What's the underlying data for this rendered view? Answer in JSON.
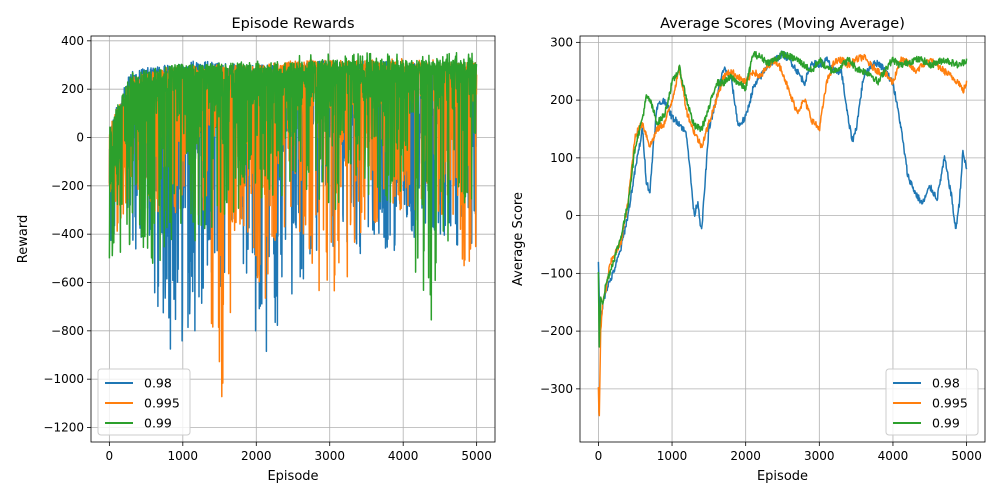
{
  "chart_data": [
    {
      "type": "line",
      "title": "Episode Rewards",
      "xlabel": "Episode",
      "ylabel": "Reward",
      "xlim": [
        -250,
        5250
      ],
      "ylim": [
        -1260,
        420
      ],
      "xticks": [
        0,
        1000,
        2000,
        3000,
        4000,
        5000
      ],
      "yticks": [
        -1200,
        -1000,
        -800,
        -600,
        -400,
        -200,
        0,
        200,
        400
      ],
      "grid": true,
      "legend": "lower-left",
      "series": [
        {
          "name": "0.98",
          "color": "#1f77b4",
          "values_note": "noisy per-episode rewards",
          "envelope": {
            "x": [
              0,
              300,
              800,
              1200,
              1800,
              2100,
              2500,
              3000,
              3500,
              4000,
              4500,
              5000
            ],
            "lo": [
              -500,
              -420,
              -900,
              -800,
              -520,
              -970,
              -640,
              -480,
              -500,
              -460,
              -400,
              -500
            ],
            "hi": [
              50,
              280,
              300,
              320,
              300,
              300,
              310,
              320,
              320,
              310,
              310,
              310
            ],
            "mid": [
              -150,
              50,
              60,
              0,
              150,
              200,
              200,
              150,
              120,
              80,
              60,
              60
            ]
          }
        },
        {
          "name": "0.995",
          "color": "#ff7f0e",
          "envelope": {
            "x": [
              0,
              300,
              800,
              1200,
              1500,
              1800,
              2100,
              2500,
              3000,
              3500,
              4000,
              4500,
              5000
            ],
            "lo": [
              -420,
              -380,
              -350,
              -300,
              -1190,
              -350,
              -730,
              -300,
              -800,
              -380,
              -320,
              -340,
              -690
            ],
            "hi": [
              50,
              250,
              290,
              300,
              300,
              300,
              300,
              320,
              320,
              320,
              310,
              310,
              310
            ],
            "mid": [
              -150,
              20,
              100,
              120,
              100,
              150,
              200,
              220,
              200,
              220,
              230,
              220,
              220
            ]
          }
        },
        {
          "name": "0.99",
          "color": "#2ca02c",
          "envelope": {
            "x": [
              0,
              300,
              800,
              1200,
              1800,
              2500,
              3000,
              3500,
              4000,
              4350,
              4700,
              5000
            ],
            "lo": [
              -510,
              -450,
              -590,
              -420,
              -300,
              -250,
              -300,
              -300,
              -250,
              -910,
              -300,
              -250
            ],
            "hi": [
              50,
              270,
              300,
              310,
              310,
              310,
              320,
              320,
              320,
              320,
              320,
              320
            ],
            "mid": [
              -150,
              60,
              150,
              200,
              220,
              240,
              250,
              250,
              260,
              250,
              250,
              260
            ]
          }
        }
      ]
    },
    {
      "type": "line",
      "title": "Average Scores (Moving Average)",
      "xlabel": "Episode",
      "ylabel": "Average Score",
      "xlim": [
        -250,
        5250
      ],
      "ylim": [
        -392,
        311
      ],
      "xticks": [
        0,
        1000,
        2000,
        3000,
        4000,
        5000
      ],
      "yticks": [
        -300,
        -200,
        -100,
        0,
        100,
        200,
        300
      ],
      "grid": true,
      "legend": "lower-right",
      "series": [
        {
          "name": "0.98",
          "color": "#1f77b4",
          "x": [
            0,
            20,
            50,
            100,
            200,
            300,
            400,
            500,
            600,
            650,
            700,
            750,
            800,
            900,
            1000,
            1100,
            1200,
            1300,
            1350,
            1400,
            1450,
            1500,
            1600,
            1700,
            1800,
            1900,
            2000,
            2100,
            2200,
            2300,
            2400,
            2500,
            2600,
            2700,
            2800,
            2900,
            3000,
            3100,
            3200,
            3300,
            3400,
            3450,
            3500,
            3600,
            3700,
            3800,
            3900,
            4000,
            4100,
            4200,
            4300,
            4400,
            4500,
            4600,
            4700,
            4800,
            4850,
            4900,
            4950,
            5000
          ],
          "y": [
            -75,
            -200,
            -160,
            -130,
            -100,
            -60,
            0,
            80,
            150,
            60,
            40,
            130,
            190,
            200,
            170,
            160,
            140,
            0,
            25,
            -30,
            60,
            150,
            200,
            255,
            240,
            155,
            170,
            220,
            240,
            260,
            270,
            280,
            270,
            250,
            230,
            265,
            260,
            270,
            250,
            250,
            160,
            130,
            150,
            240,
            260,
            265,
            250,
            230,
            160,
            70,
            40,
            20,
            50,
            30,
            100,
            30,
            -25,
            20,
            110,
            80
          ]
        },
        {
          "name": "0.995",
          "color": "#ff7f0e",
          "x": [
            0,
            10,
            30,
            60,
            100,
            150,
            200,
            300,
            400,
            500,
            600,
            700,
            800,
            900,
            1000,
            1100,
            1200,
            1300,
            1400,
            1500,
            1600,
            1700,
            1800,
            1900,
            2000,
            2100,
            2200,
            2300,
            2400,
            2500,
            2600,
            2700,
            2800,
            2900,
            3000,
            3100,
            3200,
            3300,
            3400,
            3500,
            3600,
            3700,
            3800,
            3900,
            4000,
            4100,
            4200,
            4300,
            4400,
            4500,
            4600,
            4700,
            4800,
            4900,
            4950,
            5000
          ],
          "y": [
            -300,
            -365,
            -200,
            -150,
            -130,
            -90,
            -70,
            -50,
            20,
            140,
            160,
            120,
            150,
            160,
            200,
            255,
            180,
            145,
            120,
            160,
            200,
            240,
            250,
            240,
            230,
            250,
            240,
            260,
            270,
            250,
            210,
            180,
            200,
            165,
            150,
            230,
            265,
            270,
            260,
            270,
            275,
            260,
            250,
            245,
            230,
            270,
            265,
            250,
            260,
            270,
            260,
            250,
            240,
            230,
            215,
            230
          ]
        },
        {
          "name": "0.99",
          "color": "#2ca02c",
          "x": [
            0,
            10,
            30,
            60,
            100,
            150,
            200,
            300,
            400,
            500,
            600,
            650,
            700,
            800,
            900,
            1000,
            1100,
            1200,
            1300,
            1400,
            1500,
            1600,
            1700,
            1800,
            1900,
            2000,
            2100,
            2200,
            2300,
            2400,
            2500,
            2600,
            2700,
            2800,
            2900,
            3000,
            3100,
            3200,
            3300,
            3400,
            3500,
            3600,
            3700,
            3800,
            3900,
            4000,
            4100,
            4200,
            4300,
            4400,
            4500,
            4600,
            4700,
            4800,
            4900,
            5000
          ],
          "y": [
            -100,
            -235,
            -140,
            -150,
            -120,
            -100,
            -80,
            -40,
            20,
            120,
            170,
            205,
            200,
            160,
            175,
            230,
            255,
            200,
            155,
            150,
            185,
            230,
            230,
            240,
            230,
            220,
            280,
            275,
            265,
            270,
            280,
            275,
            270,
            260,
            250,
            270,
            255,
            250,
            260,
            270,
            255,
            250,
            245,
            230,
            255,
            270,
            260,
            265,
            270,
            270,
            260,
            265,
            270,
            265,
            260,
            270
          ]
        }
      ]
    }
  ]
}
